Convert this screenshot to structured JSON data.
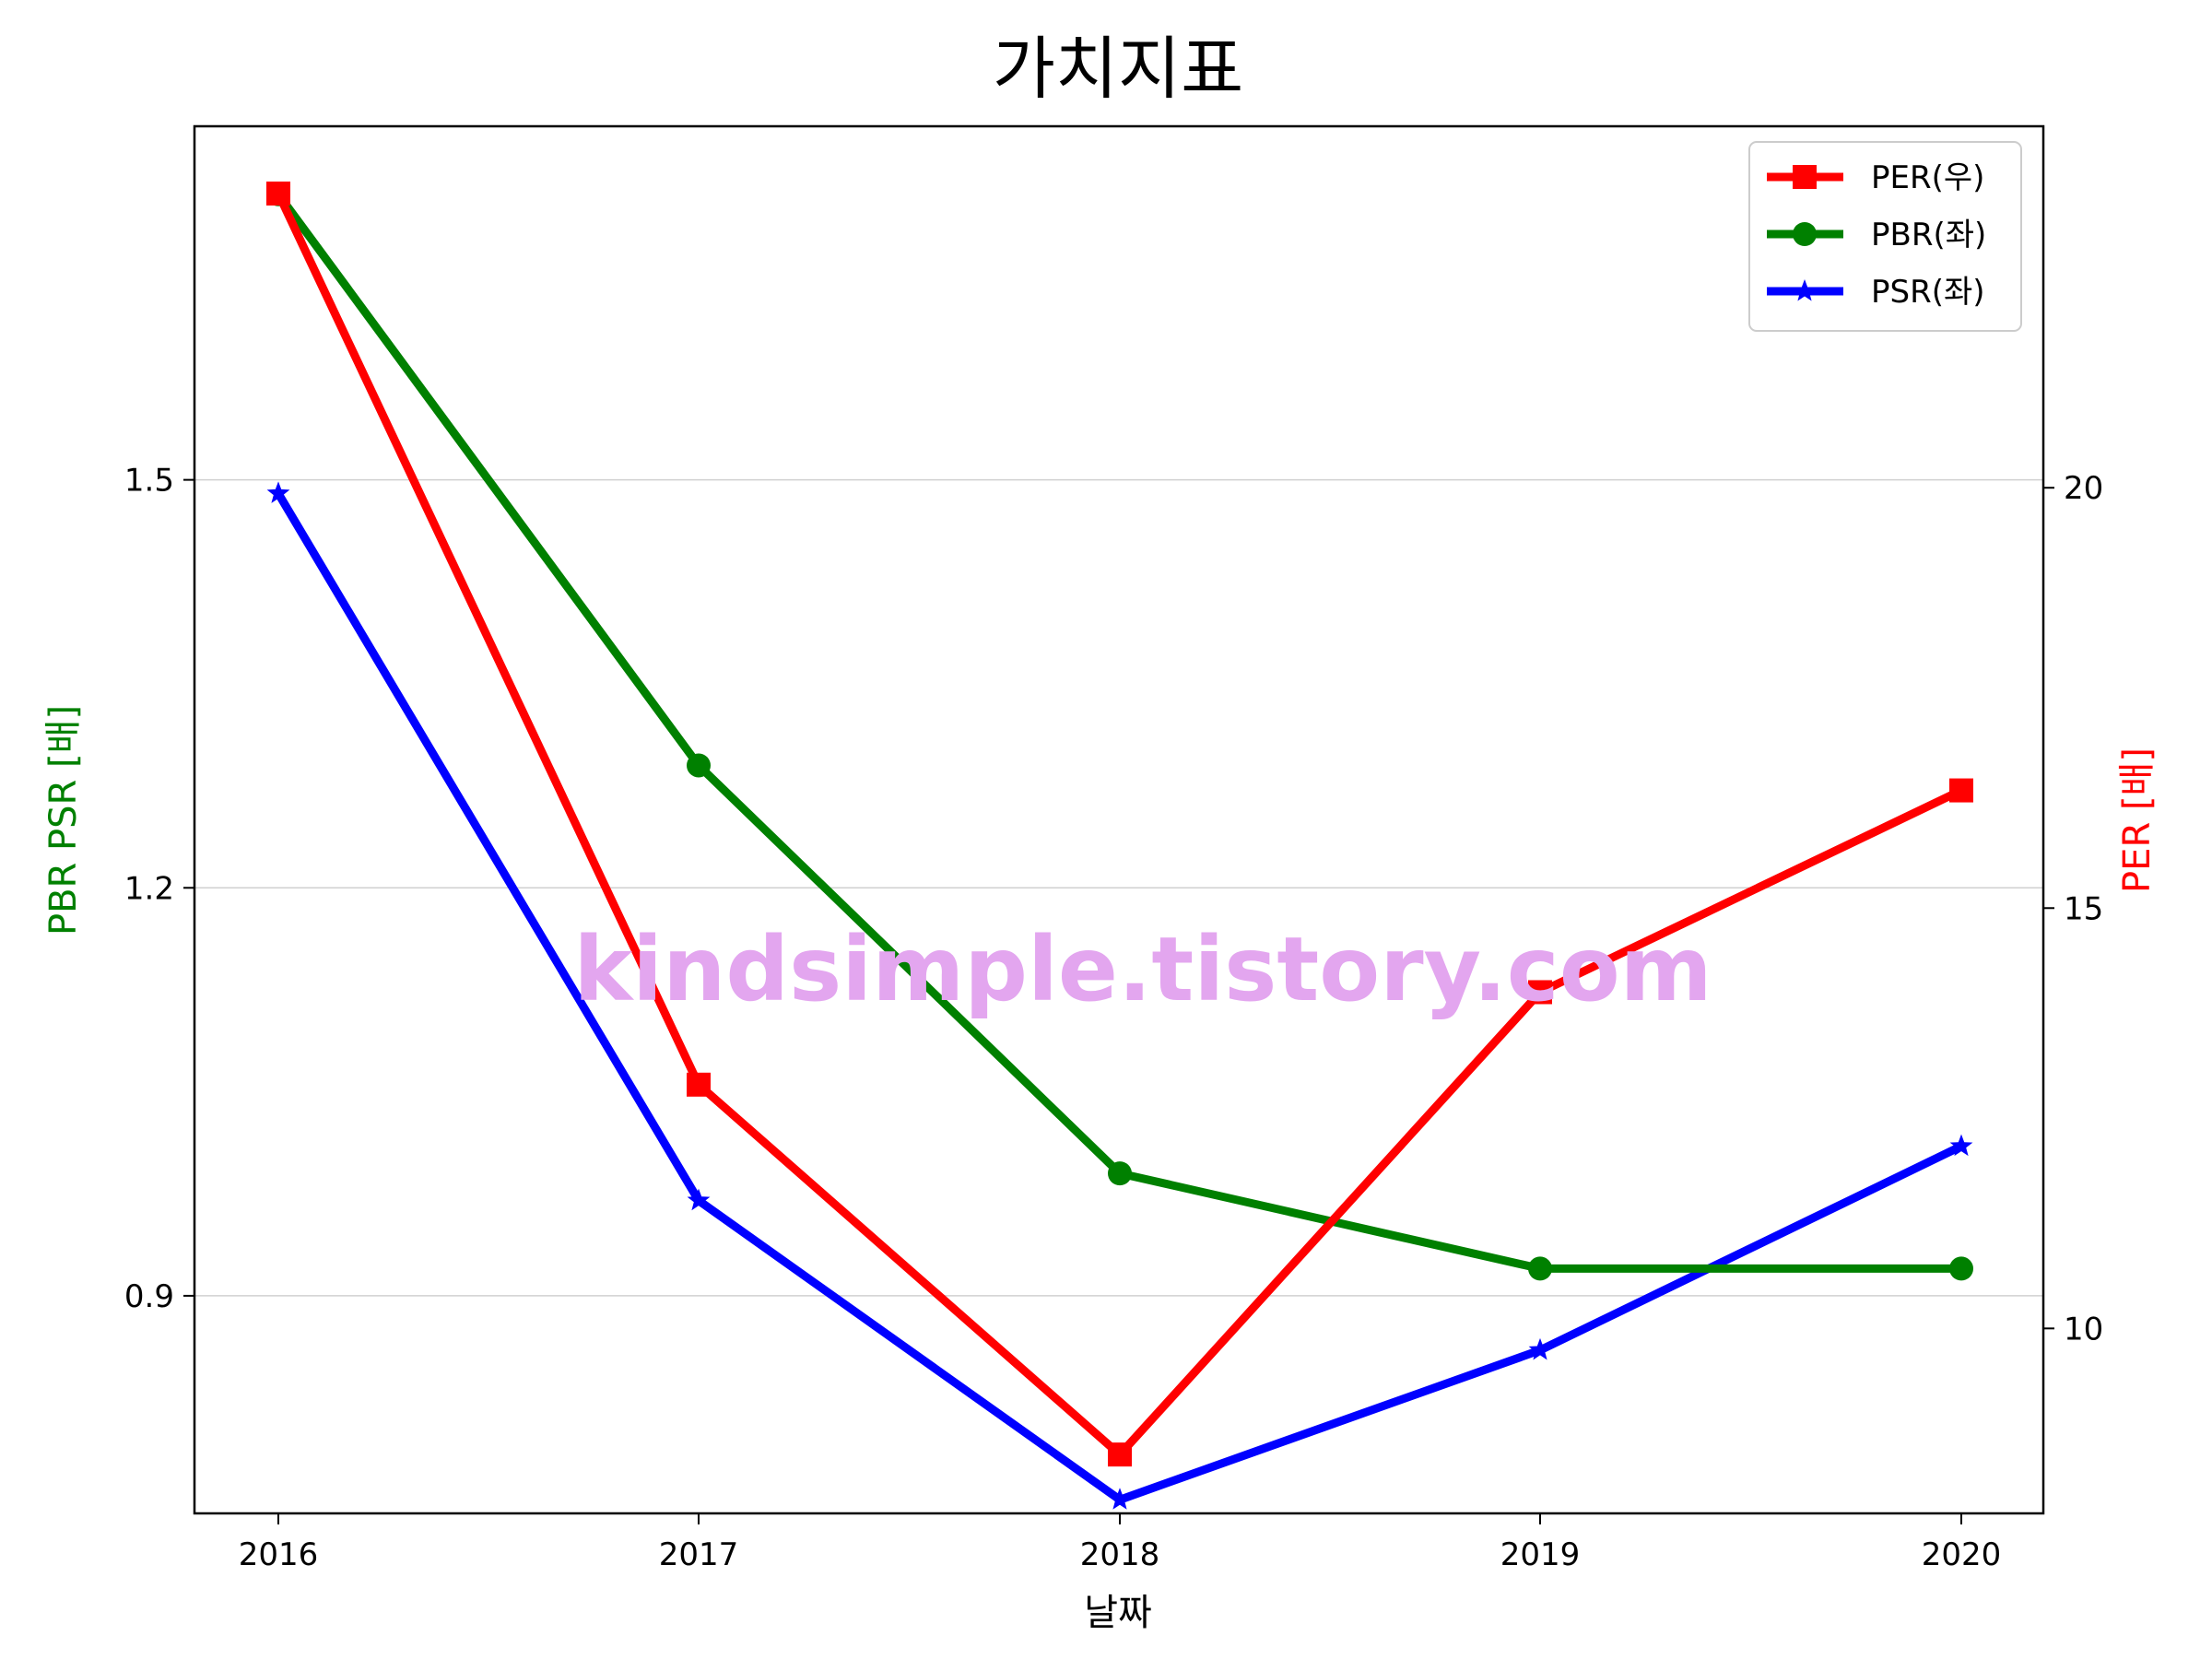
{
  "chart_data": {
    "type": "line",
    "title": "가치지표",
    "xlabel": "날짜",
    "ylabel_left": "PBR PSR [배]",
    "ylabel_right": "PER [배]",
    "x": [
      "2016",
      "2017",
      "2018",
      "2019",
      "2020"
    ],
    "ylim_left": [
      0.74,
      1.76
    ],
    "yticks_left": [
      "0.9",
      "1.2",
      "1.5"
    ],
    "ylim_right": [
      7.8,
      24.3
    ],
    "yticks_right": [
      "10",
      "15",
      "20"
    ],
    "grid": "horizontal (left axis)",
    "legend_position": "top-right",
    "series": [
      {
        "name": "PER(우)",
        "axis": "right",
        "color": "#ff0000",
        "marker": "square",
        "values": [
          23.5,
          12.9,
          8.5,
          14.0,
          16.4
        ]
      },
      {
        "name": "PBR(좌)",
        "axis": "left",
        "color": "#008000",
        "marker": "circle",
        "values": [
          1.71,
          1.29,
          0.99,
          0.92,
          0.92
        ]
      },
      {
        "name": "PSR(좌)",
        "axis": "left",
        "color": "#0000ff",
        "marker": "star",
        "values": [
          1.49,
          0.97,
          0.75,
          0.86,
          1.01
        ]
      }
    ],
    "watermark": "kindsimple.tistory.com",
    "colors": {
      "left_axis_label": "#008000",
      "right_axis_label": "#ff0000",
      "watermark": "#e3a6ef"
    }
  }
}
